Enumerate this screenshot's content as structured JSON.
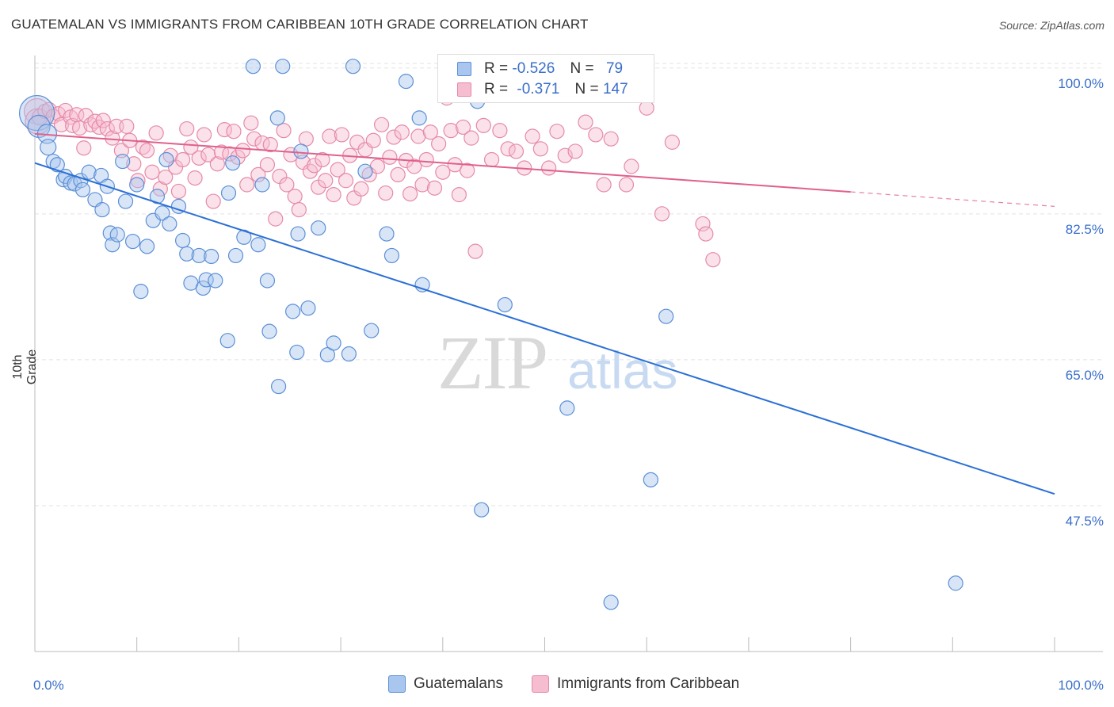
{
  "title": "GUATEMALAN VS IMMIGRANTS FROM CARIBBEAN 10TH GRADE CORRELATION CHART",
  "source": "Source: ZipAtlas.com",
  "watermark": {
    "zip": "ZIP",
    "atlas": "atlas"
  },
  "legend": {
    "rows": [
      {
        "r_label": "R =",
        "r_value": "-0.526",
        "n_label": "N =",
        "n_value": "79"
      },
      {
        "r_label": "R =",
        "r_value": "-0.371",
        "n_label": "N =",
        "n_value": "147"
      }
    ]
  },
  "bottom_legend": {
    "series1": "Guatemalans",
    "series2": "Immigrants from Caribbean"
  },
  "colors": {
    "blue_fill": "#a9c6ee",
    "blue_stroke": "#5b8fd6",
    "blue_line": "#2a6fd6",
    "pink_fill": "#f6bcd0",
    "pink_stroke": "#e58aa8",
    "pink_line": "#e0608d",
    "tick_text": "#3a6fc9",
    "grid": "#e3e3e3"
  },
  "chart_data": {
    "type": "scatter",
    "title": "GUATEMALAN VS IMMIGRANTS FROM CARIBBEAN 10TH GRADE CORRELATION CHART",
    "xlabel": "",
    "ylabel": "10th Grade",
    "xlim": [
      0,
      100
    ],
    "ylim": [
      30,
      101.5
    ],
    "x_tick_labels": [
      "0.0%",
      "100.0%"
    ],
    "y_ticks": [
      100,
      82.5,
      65,
      47.5
    ],
    "y_tick_labels": [
      "100.0%",
      "82.5%",
      "65.0%",
      "47.5%"
    ],
    "grid": true,
    "legend_position": "top-center",
    "series": [
      {
        "name": "Guatemalans",
        "r": -0.526,
        "n": 79,
        "trend": {
          "x": [
            0,
            100
          ],
          "y": [
            88.6,
            48.9
          ],
          "dashed_from": null
        },
        "points": [
          [
            0.2,
            94.6,
            22
          ],
          [
            0.4,
            93.0,
            14
          ],
          [
            1.2,
            92.1,
            12
          ],
          [
            1.3,
            90.5,
            10
          ],
          [
            1.8,
            88.8,
            9
          ],
          [
            2.2,
            88.4,
            9
          ],
          [
            2.8,
            86.6,
            9
          ],
          [
            3.0,
            87.0,
            9
          ],
          [
            3.5,
            86.2,
            9
          ],
          [
            3.9,
            86.1,
            9
          ],
          [
            4.5,
            86.5,
            9
          ],
          [
            4.7,
            85.4,
            9
          ],
          [
            5.3,
            87.5,
            9
          ],
          [
            5.9,
            84.2,
            9
          ],
          [
            6.5,
            87.1,
            9
          ],
          [
            6.6,
            83.0,
            9
          ],
          [
            7.1,
            85.8,
            9
          ],
          [
            7.4,
            80.2,
            9
          ],
          [
            7.6,
            78.8,
            9
          ],
          [
            8.1,
            80.0,
            9
          ],
          [
            8.6,
            88.8,
            9
          ],
          [
            8.9,
            84.0,
            9
          ],
          [
            9.6,
            79.2,
            9
          ],
          [
            10.0,
            86.0,
            9
          ],
          [
            10.4,
            73.2,
            9
          ],
          [
            11.0,
            78.6,
            9
          ],
          [
            11.6,
            81.7,
            9
          ],
          [
            12.0,
            84.6,
            9
          ],
          [
            12.5,
            82.6,
            9
          ],
          [
            12.9,
            89.0,
            9
          ],
          [
            13.2,
            81.3,
            9
          ],
          [
            14.1,
            83.4,
            9
          ],
          [
            14.5,
            79.3,
            9
          ],
          [
            14.9,
            77.7,
            9
          ],
          [
            15.3,
            74.2,
            9
          ],
          [
            16.1,
            77.5,
            9
          ],
          [
            16.5,
            73.6,
            9
          ],
          [
            16.8,
            74.6,
            9
          ],
          [
            17.3,
            77.4,
            9
          ],
          [
            17.7,
            74.5,
            9
          ],
          [
            18.9,
            67.3,
            9
          ],
          [
            19.0,
            85.0,
            9
          ],
          [
            19.4,
            88.6,
            9
          ],
          [
            19.7,
            77.5,
            9
          ],
          [
            20.5,
            79.7,
            9
          ],
          [
            21.4,
            100.2,
            9
          ],
          [
            21.9,
            78.8,
            9
          ],
          [
            22.3,
            86.0,
            9
          ],
          [
            22.8,
            74.5,
            9
          ],
          [
            23.0,
            68.4,
            9
          ],
          [
            23.8,
            94.0,
            9
          ],
          [
            23.9,
            61.8,
            9
          ],
          [
            24.3,
            100.2,
            9
          ],
          [
            25.3,
            70.8,
            9
          ],
          [
            25.7,
            65.9,
            9
          ],
          [
            25.8,
            80.1,
            9
          ],
          [
            26.1,
            90.0,
            9
          ],
          [
            26.8,
            71.2,
            9
          ],
          [
            27.8,
            80.8,
            9
          ],
          [
            28.7,
            65.6,
            9
          ],
          [
            29.3,
            67.0,
            9
          ],
          [
            30.8,
            65.7,
            9
          ],
          [
            31.2,
            100.2,
            9
          ],
          [
            32.4,
            87.6,
            9
          ],
          [
            33.0,
            68.5,
            9
          ],
          [
            34.5,
            80.1,
            9
          ],
          [
            35.0,
            77.5,
            9
          ],
          [
            36.4,
            98.4,
            9
          ],
          [
            37.7,
            94.0,
            9
          ],
          [
            38.0,
            74.0,
            9
          ],
          [
            43.4,
            96.0,
            9
          ],
          [
            43.8,
            47.0,
            9
          ],
          [
            46.1,
            71.6,
            9
          ],
          [
            52.2,
            59.2,
            9
          ],
          [
            56.5,
            35.9,
            9
          ],
          [
            60.4,
            50.6,
            9
          ],
          [
            61.9,
            70.2,
            9
          ],
          [
            90.3,
            38.2,
            9
          ]
        ]
      },
      {
        "name": "Immigrants from Caribbean",
        "r": -0.371,
        "n": 147,
        "trend": {
          "x": [
            0,
            100
          ],
          "y": [
            92.1,
            83.4
          ],
          "dashed_from": 80
        },
        "points": [
          [
            0.2,
            94.8,
            16
          ],
          [
            0.3,
            93.6,
            16
          ],
          [
            0.5,
            94.1,
            10
          ],
          [
            1.0,
            94.8,
            9
          ],
          [
            1.4,
            95.0,
            9
          ],
          [
            1.8,
            94.2,
            9
          ],
          [
            2.3,
            94.5,
            9
          ],
          [
            2.6,
            93.2,
            9
          ],
          [
            3.0,
            94.9,
            9
          ],
          [
            3.5,
            94.1,
            9
          ],
          [
            3.7,
            93.1,
            9
          ],
          [
            4.1,
            94.4,
            9
          ],
          [
            4.4,
            92.8,
            9
          ],
          [
            4.8,
            90.4,
            9
          ],
          [
            5.0,
            94.3,
            9
          ],
          [
            5.5,
            93.2,
            9
          ],
          [
            5.9,
            93.6,
            9
          ],
          [
            6.3,
            92.9,
            9
          ],
          [
            6.7,
            93.7,
            9
          ],
          [
            7.1,
            92.7,
            9
          ],
          [
            7.6,
            91.6,
            9
          ],
          [
            8.0,
            93.0,
            9
          ],
          [
            8.5,
            90.1,
            9
          ],
          [
            9.0,
            93.0,
            9
          ],
          [
            9.3,
            91.3,
            9
          ],
          [
            9.7,
            88.5,
            9
          ],
          [
            10.1,
            86.5,
            9
          ],
          [
            10.6,
            90.5,
            9
          ],
          [
            11.0,
            90.1,
            9
          ],
          [
            11.5,
            87.5,
            9
          ],
          [
            11.9,
            92.2,
            9
          ],
          [
            12.3,
            85.5,
            9
          ],
          [
            12.8,
            86.9,
            9
          ],
          [
            13.3,
            89.5,
            9
          ],
          [
            13.8,
            88.1,
            9
          ],
          [
            14.1,
            85.2,
            9
          ],
          [
            14.5,
            89.0,
            9
          ],
          [
            14.9,
            92.7,
            9
          ],
          [
            15.3,
            90.5,
            9
          ],
          [
            15.7,
            86.8,
            9
          ],
          [
            16.1,
            89.2,
            9
          ],
          [
            16.6,
            92.0,
            9
          ],
          [
            17.0,
            89.6,
            9
          ],
          [
            17.5,
            84.0,
            9
          ],
          [
            17.9,
            88.5,
            9
          ],
          [
            18.3,
            89.9,
            9
          ],
          [
            18.6,
            92.6,
            9
          ],
          [
            19.1,
            89.7,
            9
          ],
          [
            19.5,
            92.4,
            9
          ],
          [
            19.9,
            89.3,
            9
          ],
          [
            20.4,
            90.1,
            9
          ],
          [
            20.8,
            86.0,
            9
          ],
          [
            21.2,
            93.4,
            9
          ],
          [
            21.5,
            91.5,
            9
          ],
          [
            21.9,
            87.2,
            9
          ],
          [
            22.3,
            91.0,
            9
          ],
          [
            22.8,
            88.4,
            9
          ],
          [
            23.1,
            90.8,
            9
          ],
          [
            23.6,
            81.9,
            9
          ],
          [
            24.0,
            87.0,
            9
          ],
          [
            24.4,
            92.5,
            9
          ],
          [
            24.7,
            86.0,
            9
          ],
          [
            25.1,
            89.6,
            9
          ],
          [
            25.5,
            84.6,
            9
          ],
          [
            25.9,
            83.0,
            9
          ],
          [
            26.3,
            88.7,
            9
          ],
          [
            26.6,
            91.5,
            9
          ],
          [
            27.0,
            87.6,
            9
          ],
          [
            27.4,
            88.3,
            9
          ],
          [
            27.8,
            85.7,
            9
          ],
          [
            28.2,
            89.0,
            9
          ],
          [
            28.5,
            86.5,
            9
          ],
          [
            28.9,
            91.8,
            9
          ],
          [
            29.3,
            84.8,
            9
          ],
          [
            29.7,
            87.8,
            9
          ],
          [
            30.1,
            92.0,
            9
          ],
          [
            30.5,
            86.5,
            9
          ],
          [
            30.9,
            89.5,
            9
          ],
          [
            31.3,
            84.4,
            9
          ],
          [
            31.6,
            91.1,
            9
          ],
          [
            32.0,
            85.5,
            9
          ],
          [
            32.4,
            90.2,
            9
          ],
          [
            32.8,
            87.2,
            9
          ],
          [
            33.2,
            91.3,
            9
          ],
          [
            33.6,
            88.2,
            9
          ],
          [
            34.0,
            93.2,
            9
          ],
          [
            34.4,
            85.0,
            9
          ],
          [
            34.8,
            89.3,
            9
          ],
          [
            35.2,
            91.7,
            9
          ],
          [
            35.6,
            87.2,
            9
          ],
          [
            36.0,
            92.3,
            9
          ],
          [
            36.4,
            88.9,
            9
          ],
          [
            36.8,
            84.9,
            9
          ],
          [
            37.2,
            88.2,
            9
          ],
          [
            37.6,
            91.8,
            9
          ],
          [
            38.0,
            86.0,
            9
          ],
          [
            38.4,
            89.0,
            9
          ],
          [
            38.8,
            92.3,
            9
          ],
          [
            39.2,
            85.6,
            9
          ],
          [
            39.6,
            90.9,
            9
          ],
          [
            40.0,
            87.5,
            9
          ],
          [
            40.4,
            96.4,
            9
          ],
          [
            40.8,
            92.5,
            9
          ],
          [
            41.2,
            88.4,
            9
          ],
          [
            41.6,
            84.8,
            9
          ],
          [
            42.0,
            92.9,
            9
          ],
          [
            42.4,
            87.7,
            9
          ],
          [
            42.8,
            91.6,
            9
          ],
          [
            43.2,
            78.0,
            9
          ],
          [
            44.0,
            93.1,
            9
          ],
          [
            44.8,
            89.0,
            9
          ],
          [
            45.6,
            92.5,
            9
          ],
          [
            46.4,
            90.3,
            9
          ],
          [
            47.2,
            90.0,
            9
          ],
          [
            48.0,
            88.0,
            9
          ],
          [
            48.8,
            91.8,
            9
          ],
          [
            49.6,
            90.3,
            9
          ],
          [
            50.4,
            88.0,
            9
          ],
          [
            51.2,
            92.4,
            9
          ],
          [
            52.0,
            89.5,
            9
          ],
          [
            53.0,
            90.0,
            9
          ],
          [
            54.0,
            93.5,
            9
          ],
          [
            55.0,
            92.0,
            9
          ],
          [
            55.8,
            86.0,
            9
          ],
          [
            56.5,
            91.5,
            9
          ],
          [
            57.5,
            100.5,
            9
          ],
          [
            58.0,
            86.0,
            9
          ],
          [
            58.5,
            88.2,
            9
          ],
          [
            60.0,
            95.2,
            9
          ],
          [
            61.5,
            82.5,
            9
          ],
          [
            62.5,
            91.1,
            9
          ],
          [
            65.5,
            81.3,
            9
          ],
          [
            65.8,
            80.1,
            9
          ],
          [
            66.5,
            77.0,
            9
          ]
        ]
      }
    ]
  }
}
